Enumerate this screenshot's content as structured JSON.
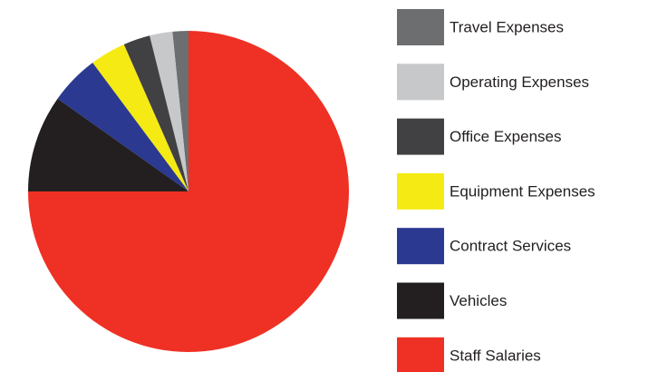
{
  "chart_data": {
    "type": "pie",
    "categories": [
      "Travel Expenses",
      "Operating Expenses",
      "Office Expenses",
      "Equipment Expenses",
      "Contract Services",
      "Vehicles",
      "Staff Salaries"
    ],
    "values": [
      1.6,
      2.3,
      2.7,
      3.6,
      5,
      9.8,
      75
    ],
    "colors": [
      "#6d6e70",
      "#c7c8ca",
      "#414042",
      "#f5ea14",
      "#2b3990",
      "#231f20",
      "#ee3124"
    ],
    "start_angle": 90,
    "counterclock": true,
    "legend": "right"
  }
}
